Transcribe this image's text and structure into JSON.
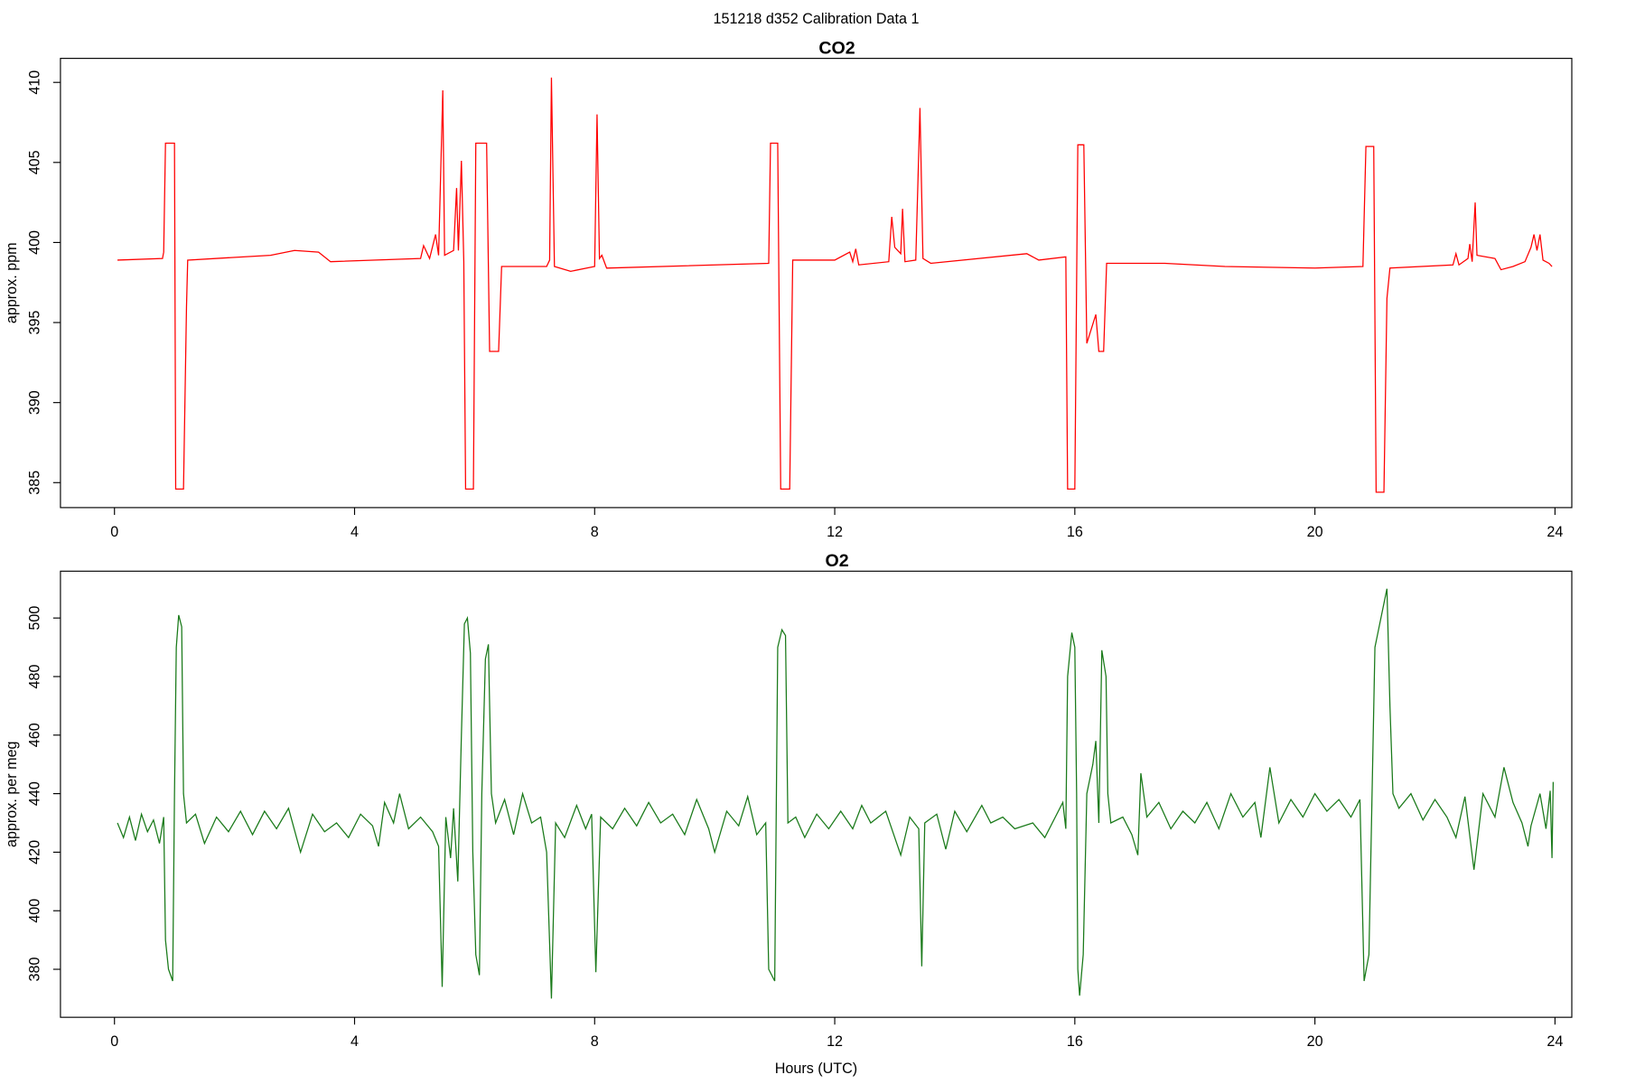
{
  "title": "151218   d352   Calibration Data 1",
  "chart_data": [
    {
      "type": "line",
      "title": "CO2",
      "ylabel": "approx. ppm",
      "xlim": [
        -0.9,
        24.28
      ],
      "xticks": [
        0,
        4,
        8,
        12,
        16,
        20,
        24
      ],
      "ylim": [
        383.44,
        411.5
      ],
      "yticks": [
        385,
        390,
        395,
        400,
        405,
        410
      ],
      "series": [
        {
          "color": "#ff0000",
          "x": [
            0.05,
            0.8,
            0.82,
            0.85,
            1.0,
            1.02,
            1.15,
            1.2,
            1.22,
            2.6,
            3.0,
            3.4,
            3.6,
            5.1,
            5.15,
            5.25,
            5.35,
            5.4,
            5.47,
            5.5,
            5.65,
            5.7,
            5.73,
            5.78,
            5.82,
            5.85,
            5.98,
            6.02,
            6.2,
            6.25,
            6.4,
            6.45,
            7.2,
            7.25,
            7.28,
            7.33,
            7.6,
            8.0,
            8.04,
            8.08,
            8.12,
            8.2,
            10.9,
            10.93,
            11.05,
            11.1,
            11.25,
            11.3,
            12.0,
            12.25,
            12.3,
            12.35,
            12.4,
            12.9,
            12.95,
            13.0,
            13.1,
            13.13,
            13.17,
            13.35,
            13.42,
            13.47,
            13.6,
            15.2,
            15.4,
            15.85,
            15.88,
            16.0,
            16.05,
            16.15,
            16.2,
            16.35,
            16.4,
            16.48,
            16.53,
            17.5,
            18.5,
            20.0,
            20.8,
            20.85,
            20.98,
            21.02,
            21.15,
            21.2,
            21.25,
            22.3,
            22.35,
            22.4,
            22.55,
            22.58,
            22.62,
            22.67,
            22.7,
            23.0,
            23.1,
            23.3,
            23.5,
            23.6,
            23.65,
            23.7,
            23.75,
            23.8,
            23.9,
            23.95
          ],
          "values": [
            398.9,
            399,
            399.4,
            406.2,
            406.2,
            384.6,
            384.6,
            396,
            398.9,
            399.2,
            399.5,
            399.4,
            398.8,
            399,
            399.8,
            399,
            400.5,
            399.2,
            409.5,
            399.2,
            399.5,
            403.4,
            399.5,
            405.1,
            398.8,
            384.6,
            384.6,
            406.2,
            406.2,
            393.2,
            393.2,
            398.5,
            398.5,
            398.9,
            410.3,
            398.5,
            398.2,
            398.5,
            408,
            399,
            399.2,
            398.4,
            398.7,
            406.2,
            406.2,
            384.6,
            384.6,
            398.9,
            398.9,
            399.4,
            398.8,
            399.6,
            398.6,
            398.8,
            401.6,
            399.7,
            399.3,
            402.1,
            398.8,
            398.9,
            408.4,
            399,
            398.7,
            399.3,
            398.9,
            399.1,
            384.6,
            384.6,
            406.1,
            406.1,
            393.7,
            395.5,
            393.2,
            393.2,
            398.7,
            398.7,
            398.5,
            398.4,
            398.5,
            406,
            406,
            384.4,
            384.4,
            396.5,
            398.4,
            398.6,
            399.3,
            398.6,
            399,
            399.9,
            398.8,
            402.5,
            399.2,
            399,
            398.3,
            398.5,
            398.8,
            399.7,
            400.5,
            399.5,
            400.5,
            398.9,
            398.7,
            398.5
          ]
        }
      ]
    },
    {
      "type": "line",
      "title": "O2",
      "ylabel": "approx. per meg",
      "xlabel": "Hours (UTC)",
      "xlim": [
        -0.9,
        24.28
      ],
      "xticks": [
        0,
        4,
        8,
        12,
        16,
        20,
        24
      ],
      "ylim": [
        363.6,
        516
      ],
      "yticks": [
        380,
        400,
        420,
        440,
        460,
        480,
        500
      ],
      "series": [
        {
          "color": "#1a7a1a",
          "x": [
            0.05,
            0.15,
            0.25,
            0.35,
            0.45,
            0.55,
            0.65,
            0.75,
            0.82,
            0.85,
            0.9,
            0.97,
            1.0,
            1.03,
            1.07,
            1.12,
            1.15,
            1.2,
            1.35,
            1.5,
            1.7,
            1.9,
            2.1,
            2.3,
            2.5,
            2.7,
            2.9,
            3.1,
            3.3,
            3.5,
            3.7,
            3.9,
            4.1,
            4.3,
            4.4,
            4.5,
            4.65,
            4.75,
            4.9,
            5.1,
            5.3,
            5.4,
            5.46,
            5.52,
            5.6,
            5.65,
            5.72,
            5.78,
            5.83,
            5.88,
            5.93,
            5.97,
            6.02,
            6.08,
            6.12,
            6.18,
            6.23,
            6.28,
            6.35,
            6.5,
            6.65,
            6.8,
            6.95,
            7.1,
            7.2,
            7.28,
            7.35,
            7.5,
            7.7,
            7.85,
            7.95,
            8.02,
            8.1,
            8.3,
            8.5,
            8.7,
            8.9,
            9.1,
            9.3,
            9.5,
            9.7,
            9.9,
            10.0,
            10.2,
            10.4,
            10.55,
            10.7,
            10.85,
            10.9,
            11.0,
            11.05,
            11.12,
            11.18,
            11.22,
            11.35,
            11.5,
            11.7,
            11.9,
            12.1,
            12.3,
            12.45,
            12.6,
            12.85,
            13.0,
            13.1,
            13.25,
            13.4,
            13.45,
            13.5,
            13.7,
            13.85,
            14.0,
            14.2,
            14.45,
            14.6,
            14.8,
            15.0,
            15.3,
            15.5,
            15.7,
            15.8,
            15.85,
            15.88,
            15.95,
            16.0,
            16.03,
            16.05,
            16.08,
            16.14,
            16.2,
            16.3,
            16.35,
            16.4,
            16.45,
            16.52,
            16.55,
            16.6,
            16.8,
            16.95,
            17.05,
            17.1,
            17.2,
            17.4,
            17.6,
            17.8,
            18.0,
            18.2,
            18.4,
            18.6,
            18.8,
            19.0,
            19.1,
            19.25,
            19.4,
            19.6,
            19.8,
            20.0,
            20.2,
            20.4,
            20.6,
            20.75,
            20.82,
            20.9,
            21.0,
            21.1,
            21.2,
            21.25,
            21.3,
            21.4,
            21.6,
            21.8,
            22.0,
            22.2,
            22.35,
            22.5,
            22.65,
            22.8,
            23.0,
            23.15,
            23.3,
            23.45,
            23.55,
            23.6,
            23.75,
            23.85,
            23.92,
            23.95,
            23.97
          ],
          "values": [
            430,
            425,
            432,
            424,
            433,
            427,
            431,
            423,
            432,
            390,
            380,
            376,
            440,
            490,
            501,
            497,
            440,
            430,
            433,
            423,
            432,
            427,
            434,
            426,
            434,
            428,
            435,
            420,
            433,
            427,
            430,
            425,
            433,
            429,
            422,
            437,
            430,
            440,
            428,
            432,
            427,
            422,
            374,
            432,
            418,
            435,
            410,
            460,
            498,
            500,
            488,
            420,
            385,
            378,
            440,
            486,
            491,
            440,
            430,
            438,
            426,
            440,
            430,
            432,
            420,
            370,
            430,
            425,
            436,
            428,
            433,
            379,
            432,
            428,
            435,
            429,
            437,
            430,
            433,
            426,
            438,
            428,
            420,
            434,
            429,
            439,
            426,
            430,
            380,
            376,
            490,
            496,
            494,
            430,
            432,
            425,
            433,
            428,
            434,
            428,
            436,
            430,
            434,
            425,
            419,
            432,
            428,
            381,
            430,
            433,
            421,
            434,
            427,
            436,
            430,
            432,
            428,
            430,
            425,
            433,
            437,
            428,
            480,
            495,
            490,
            440,
            380,
            371,
            385,
            440,
            450,
            458,
            430,
            489,
            480,
            440,
            430,
            432,
            426,
            419,
            447,
            432,
            437,
            428,
            434,
            430,
            437,
            428,
            440,
            432,
            437,
            425,
            449,
            430,
            438,
            432,
            440,
            434,
            438,
            432,
            438,
            376,
            385,
            490,
            500,
            510,
            470,
            440,
            435,
            440,
            431,
            438,
            432,
            425,
            439,
            414,
            440,
            432,
            449,
            437,
            430,
            422,
            429,
            440,
            428,
            441,
            418,
            444
          ]
        }
      ]
    }
  ]
}
